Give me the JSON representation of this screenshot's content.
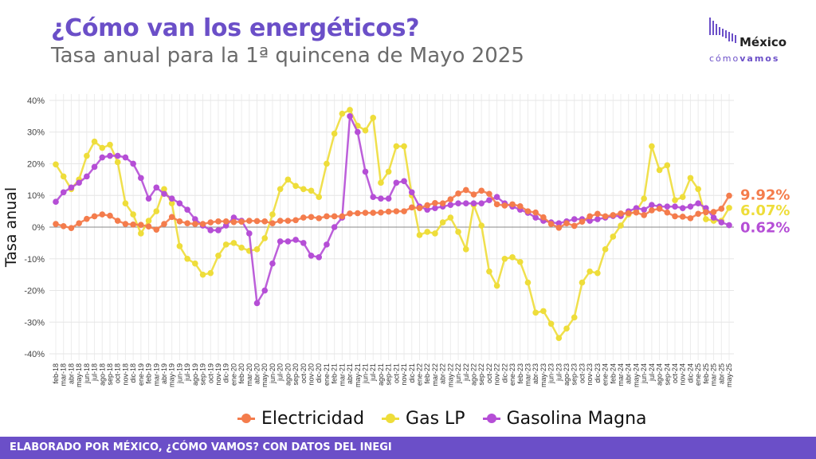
{
  "header": {
    "title": "¿Cómo van los energéticos?",
    "subtitle": "Tasa anual para la 1ª quincena de Mayo 2025"
  },
  "logo": {
    "word": "México",
    "sub_light": "cómo",
    "sub_bold": "vamos"
  },
  "footer": {
    "text": "ELABORADO POR MÉXICO, ¿CÓMO VAMOS? CON DATOS DEL INEGI"
  },
  "colors": {
    "electricidad": "#f47c4c",
    "gas_lp": "#eedd3a",
    "gasolina": "#b54ed6",
    "accent": "#6b4fc8"
  },
  "chart_data": {
    "type": "line",
    "ylabel": "Tasa anual",
    "ylim": [
      -42,
      42
    ],
    "yticks": [
      -40,
      -30,
      -20,
      -10,
      0,
      10,
      20,
      30,
      40
    ],
    "ytick_labels": [
      "-40%",
      "-30%",
      "-20%",
      "-10%",
      "0%",
      "10%",
      "20%",
      "30%",
      "40%"
    ],
    "grid": true,
    "categories": [
      "feb-18",
      "mar-18",
      "abr-18",
      "may-18",
      "jun-18",
      "jul-18",
      "ago-18",
      "sep-18",
      "oct-18",
      "nov-18",
      "dic-18",
      "ene-19",
      "feb-19",
      "mar-19",
      "abr-19",
      "may-19",
      "jun-19",
      "jul-19",
      "ago-19",
      "sep-19",
      "oct-19",
      "nov-19",
      "dic-19",
      "ene-20",
      "feb-20",
      "mar-20",
      "abr-20",
      "may-20",
      "jun-20",
      "jul-20",
      "ago-20",
      "sep-20",
      "oct-20",
      "nov-20",
      "dic-20",
      "ene-21",
      "feb-21",
      "mar-21",
      "abr-21",
      "may-21",
      "jun-21",
      "jul-21",
      "ago-21",
      "sep-21",
      "oct-21",
      "nov-21",
      "dic-21",
      "ene-22",
      "feb-22",
      "mar-22",
      "abr-22",
      "may-22",
      "jun-22",
      "jul-22",
      "ago-22",
      "sep-22",
      "oct-22",
      "nov-22",
      "dic-22",
      "ene-23",
      "feb-23",
      "mar-23",
      "abr-23",
      "may-23",
      "jun-23",
      "jul-23",
      "ago-23",
      "sep-23",
      "oct-23",
      "nov-23",
      "dic-23",
      "ene-24",
      "feb-24",
      "mar-24",
      "abr-24",
      "may-24",
      "jun-24",
      "jul-24",
      "ago-24",
      "sep-24",
      "oct-24",
      "nov-24",
      "dic-24",
      "ene-25",
      "feb-25",
      "mar-25",
      "abr-25",
      "may-25"
    ],
    "series": [
      {
        "name": "Electricidad",
        "values": [
          1.0,
          0.3,
          -0.3,
          1.2,
          2.6,
          3.4,
          4.0,
          3.6,
          2.0,
          1.0,
          0.8,
          0.7,
          0.2,
          -0.8,
          1.0,
          3.2,
          1.8,
          1.2,
          1.0,
          1.0,
          1.5,
          1.8,
          1.8,
          1.6,
          1.7,
          2.0,
          1.9,
          1.8,
          1.2,
          2.0,
          2.0,
          2.2,
          3.0,
          3.2,
          2.8,
          3.4,
          3.4,
          3.4,
          4.3,
          4.4,
          4.5,
          4.5,
          4.6,
          4.9,
          5.0,
          5.0,
          6.2,
          6.0,
          6.9,
          7.6,
          7.5,
          8.8,
          10.6,
          11.7,
          10.3,
          11.5,
          10.5,
          7.2,
          6.8,
          7.2,
          6.6,
          5.0,
          4.6,
          3.1,
          1.0,
          -0.2,
          1.2,
          0.4,
          1.7,
          3.4,
          4.2,
          3.4,
          3.8,
          4.3,
          4.4,
          4.6,
          3.8,
          5.3,
          5.8,
          4.6,
          3.4,
          3.3,
          2.8,
          4.2,
          4.7,
          4.8,
          5.8,
          9.92
        ]
      },
      {
        "name": "Gas LP",
        "values": [
          19.8,
          16.0,
          12.0,
          15.0,
          22.5,
          27.0,
          25.0,
          26.0,
          20.5,
          7.5,
          4.0,
          -2.0,
          2.0,
          5.0,
          12.0,
          7.5,
          -6.0,
          -10.0,
          -11.5,
          -15.0,
          -14.5,
          -9.0,
          -5.5,
          -5.0,
          -6.5,
          -7.5,
          -7.0,
          -3.5,
          4.0,
          12.0,
          15.0,
          13.0,
          12.0,
          11.5,
          9.5,
          20.0,
          29.5,
          35.8,
          37.0,
          32.0,
          30.5,
          34.5,
          14.0,
          17.5,
          25.5,
          25.5,
          10.0,
          -2.5,
          -1.5,
          -2.0,
          1.5,
          3.0,
          -1.5,
          -7.0,
          7.0,
          0.5,
          -14.0,
          -18.5,
          -10.0,
          -9.5,
          -11.0,
          -17.5,
          -27.0,
          -26.5,
          -30.5,
          -35.0,
          -32.0,
          -28.5,
          -17.5,
          -14.0,
          -14.5,
          -7.0,
          -3.0,
          0.5,
          4.0,
          5.0,
          9.0,
          25.5,
          18.0,
          19.5,
          8.5,
          9.5,
          15.5,
          12.0,
          2.5,
          2.0,
          2.0,
          6.07
        ]
      },
      {
        "name": "Gasolina Magna",
        "values": [
          8.0,
          11.0,
          12.5,
          14.0,
          16.0,
          19.0,
          22.0,
          22.5,
          22.5,
          22.0,
          20.0,
          15.5,
          9.0,
          12.5,
          10.5,
          9.0,
          7.5,
          5.5,
          2.5,
          0.5,
          -1.0,
          -1.0,
          0.5,
          3.0,
          2.0,
          -2.0,
          -24.0,
          -20.0,
          -11.5,
          -4.5,
          -4.5,
          -4.0,
          -5.0,
          -9.0,
          -9.5,
          -5.5,
          0.0,
          3.0,
          35.0,
          30.0,
          17.5,
          9.5,
          9.0,
          9.0,
          14.0,
          14.5,
          11.0,
          6.5,
          5.5,
          6.0,
          6.5,
          7.0,
          7.5,
          7.5,
          7.5,
          7.5,
          8.5,
          9.5,
          7.5,
          6.5,
          5.5,
          4.5,
          3.0,
          2.0,
          1.5,
          1.2,
          1.8,
          2.5,
          2.5,
          2.0,
          2.5,
          3.0,
          3.5,
          3.5,
          5.0,
          6.0,
          5.5,
          7.0,
          6.5,
          6.5,
          6.5,
          6.0,
          6.5,
          7.5,
          6.0,
          3.0,
          1.5,
          0.62
        ]
      }
    ],
    "end_labels": [
      "9.92%",
      "6.07%",
      "0.62%"
    ]
  }
}
